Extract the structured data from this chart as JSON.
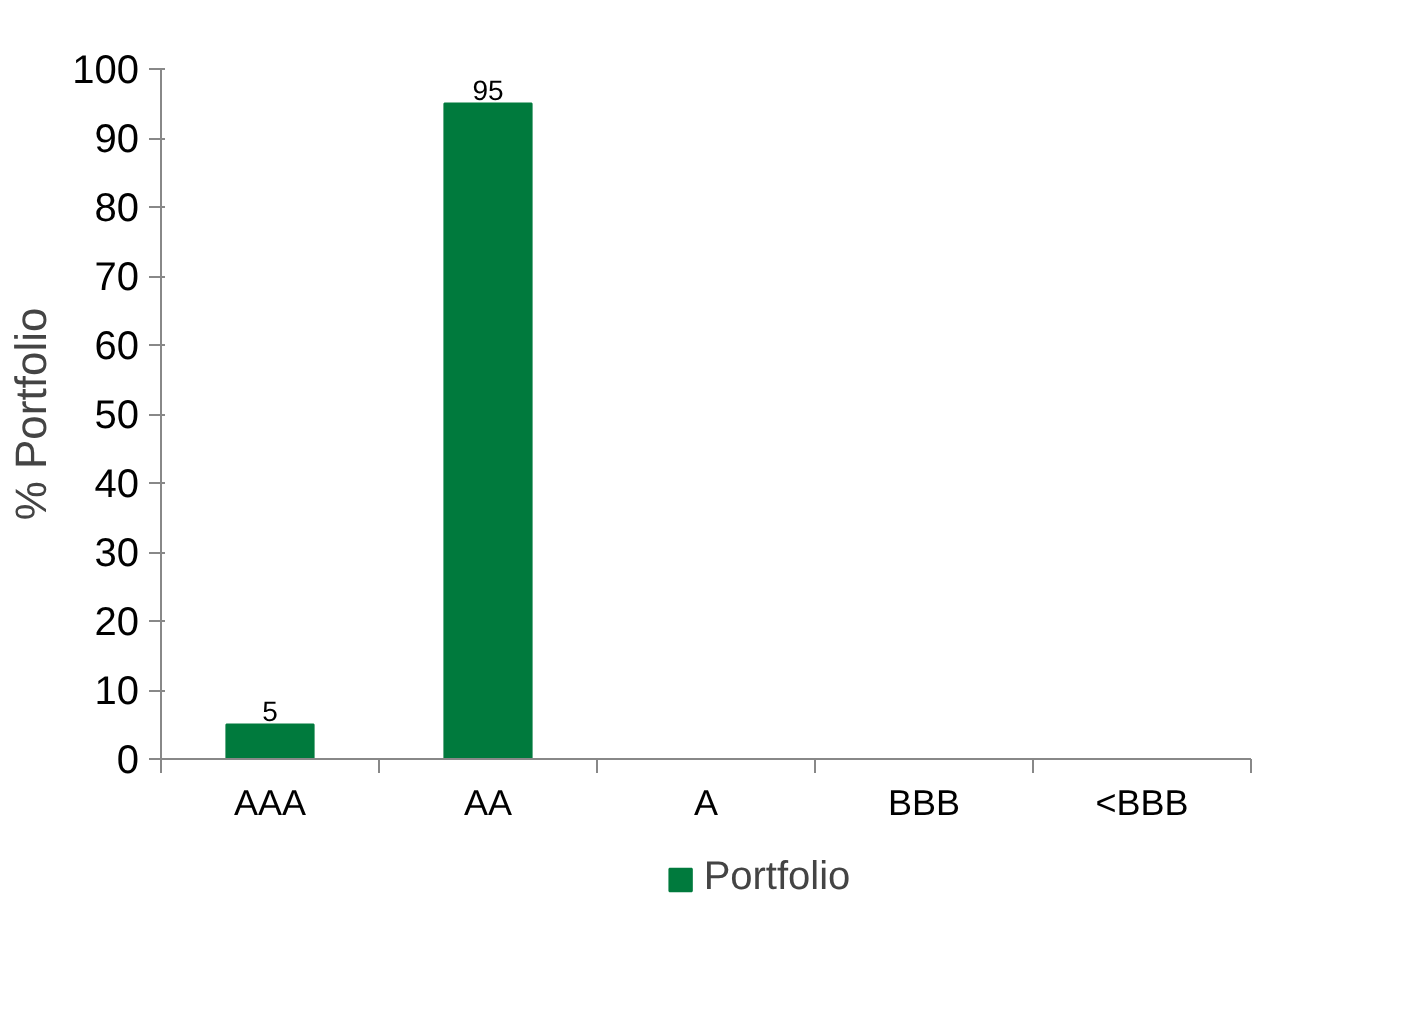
{
  "chart_data": {
    "type": "bar",
    "ylabel": "% Portfolio",
    "categories": [
      "AAA",
      "AA",
      "A",
      "BBB",
      "<BBB"
    ],
    "series": [
      {
        "name": "Portfolio",
        "color": "#007a3d",
        "values": [
          5,
          95,
          0,
          0,
          0
        ],
        "value_labels": [
          "5",
          "95",
          null,
          null,
          null
        ]
      }
    ],
    "ylim": [
      0,
      100
    ],
    "yticks": [
      0,
      10,
      20,
      30,
      40,
      50,
      60,
      70,
      80,
      90,
      100
    ],
    "grid": false,
    "legend": "bottom"
  }
}
